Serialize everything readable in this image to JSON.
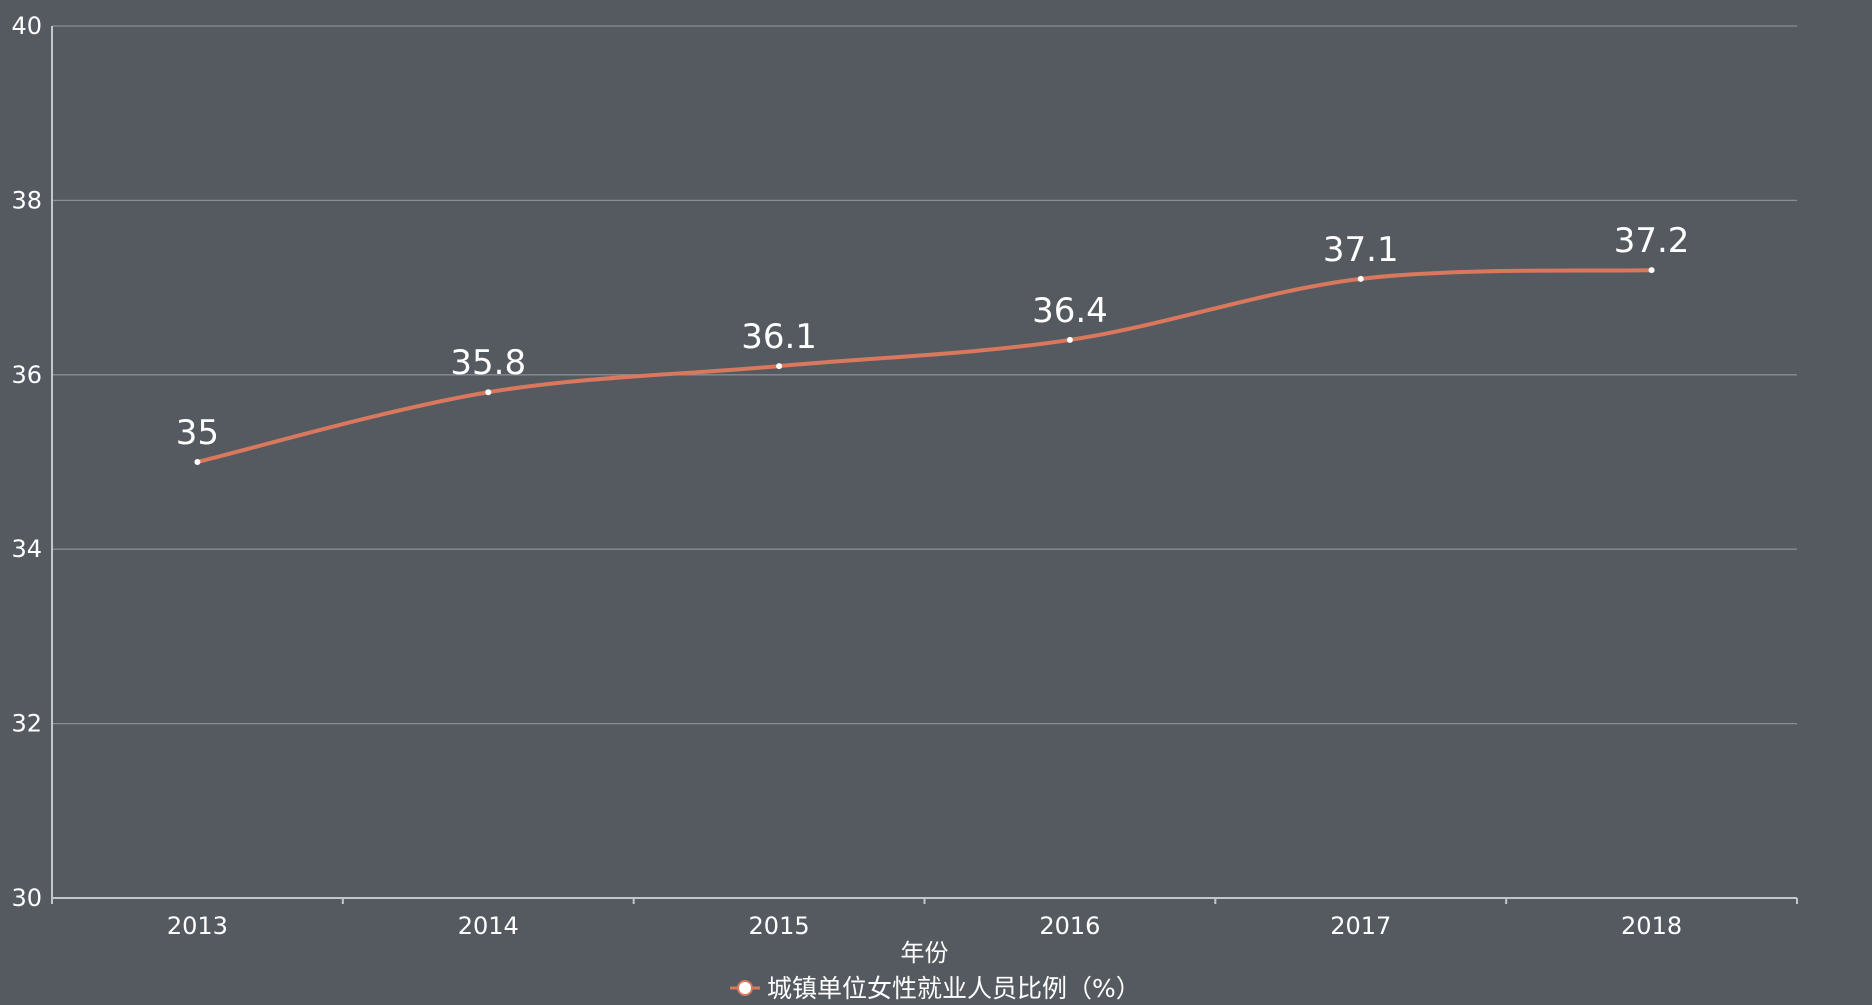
{
  "chart_data": {
    "type": "line",
    "smooth": true,
    "x": [
      "2013",
      "2014",
      "2015",
      "2016",
      "2017",
      "2018"
    ],
    "series": [
      {
        "name": "城镇单位女性就业人员比例（%）",
        "values": [
          35,
          35.8,
          36.1,
          36.4,
          37.1,
          37.2
        ],
        "color": "#d9785d"
      }
    ],
    "xlabel": "年份",
    "ylabel": "",
    "ylim": [
      30,
      40
    ],
    "yticks": [
      30,
      32,
      34,
      36,
      38,
      40
    ],
    "grid": true,
    "legend": "bottom-center",
    "colors": {
      "background": "#555a61",
      "marker_fill": "#ffffff"
    }
  }
}
